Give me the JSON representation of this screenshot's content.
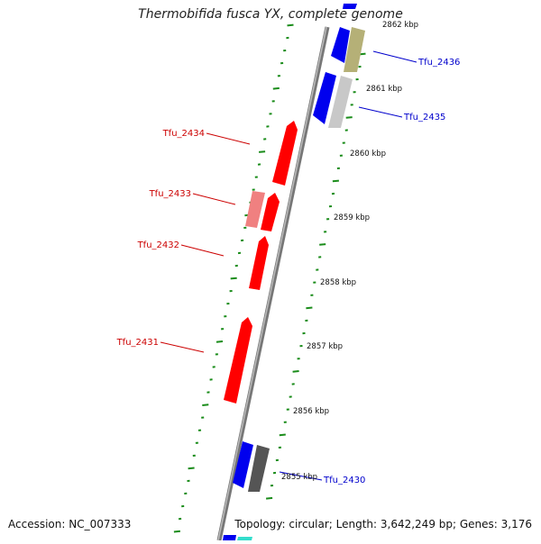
{
  "title": "Thermobifida fusca YX, complete genome",
  "footer": {
    "accession": "Accession: NC_007333",
    "summary": "Topology: circular; Length: 3,642,249 bp; Genes: 3,176"
  },
  "scale_labels": [
    "2862 kbp",
    "2861 kbp",
    "2860 kbp",
    "2859 kbp",
    "2858 kbp",
    "2857 kbp",
    "2856 kbp",
    "2855 kbp"
  ],
  "genes": [
    {
      "name": "Tfu_2436",
      "strand": "forward"
    },
    {
      "name": "Tfu_2435",
      "strand": "forward"
    },
    {
      "name": "Tfu_2434",
      "strand": "reverse"
    },
    {
      "name": "Tfu_2433",
      "strand": "reverse"
    },
    {
      "name": "Tfu_2432",
      "strand": "reverse"
    },
    {
      "name": "Tfu_2431",
      "strand": "reverse"
    },
    {
      "name": "Tfu_2430",
      "strand": "forward"
    }
  ],
  "colors": {
    "forward_label": "#0000cc",
    "reverse_label": "#cc0000",
    "forward_cds": "#0000ff",
    "reverse_cds": "#ff0000",
    "tick": "#1a8c1a",
    "backbone": "#888888"
  }
}
